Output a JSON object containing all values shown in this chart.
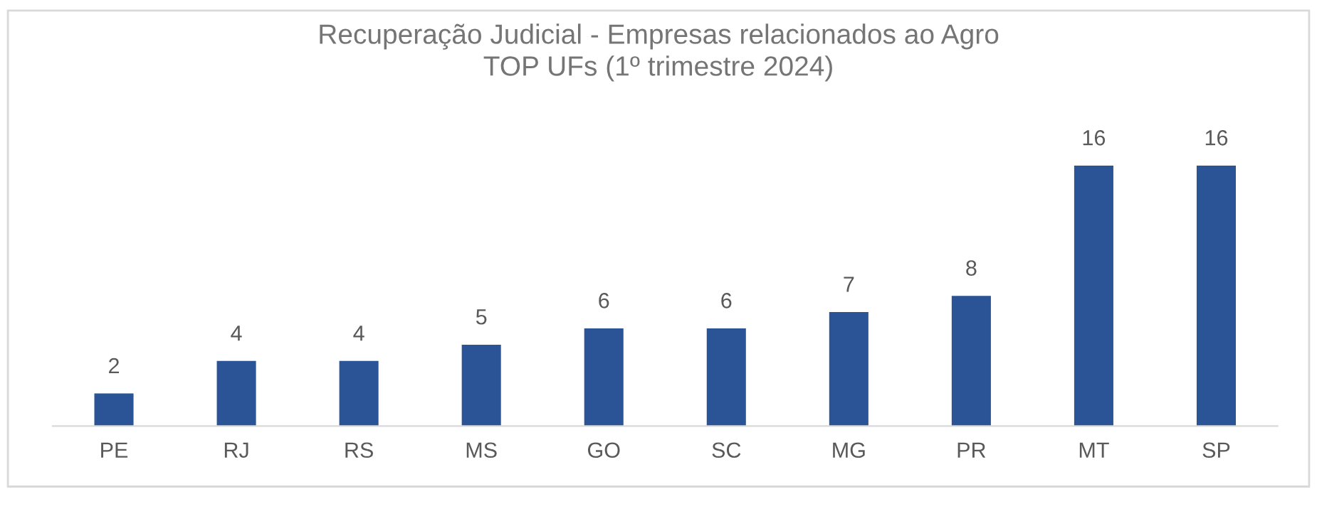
{
  "chart_data": {
    "type": "bar",
    "title": "Recuperação Judicial - Empresas relacionados ao Agro\nTOP UFs (1º trimestre 2024)",
    "categories": [
      "PE",
      "RJ",
      "RS",
      "MS",
      "GO",
      "SC",
      "MG",
      "PR",
      "MT",
      "SP"
    ],
    "values": [
      2,
      4,
      4,
      5,
      6,
      6,
      7,
      8,
      16,
      16
    ],
    "color": "#2a5496",
    "data_labels": true,
    "grid": false,
    "tick_labels": "x"
  }
}
